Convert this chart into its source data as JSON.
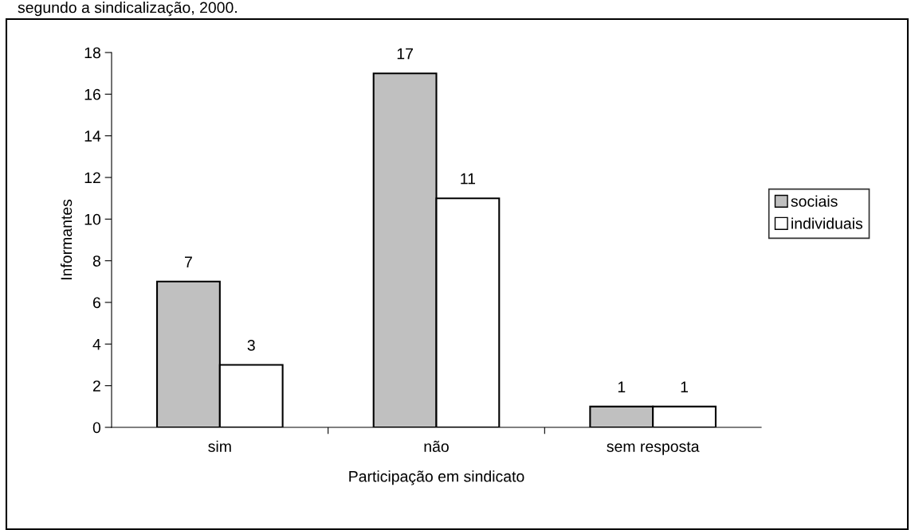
{
  "chart_data": {
    "type": "bar",
    "title": "segundo a sindicalização, 2000.",
    "xlabel": "Participação em sindicato",
    "ylabel": "Informantes",
    "categories": [
      "sim",
      "não",
      "sem resposta"
    ],
    "series": [
      {
        "name": "sociais",
        "color": "#c0c0c0",
        "values": [
          7,
          17,
          1
        ]
      },
      {
        "name": "individuais",
        "color": "#ffffff",
        "values": [
          3,
          11,
          1
        ]
      }
    ],
    "ylim": [
      0,
      18
    ],
    "yticks": [
      0,
      2,
      4,
      6,
      8,
      10,
      12,
      14,
      16,
      18
    ],
    "data_labels": true,
    "legend": "right",
    "grid": false
  }
}
